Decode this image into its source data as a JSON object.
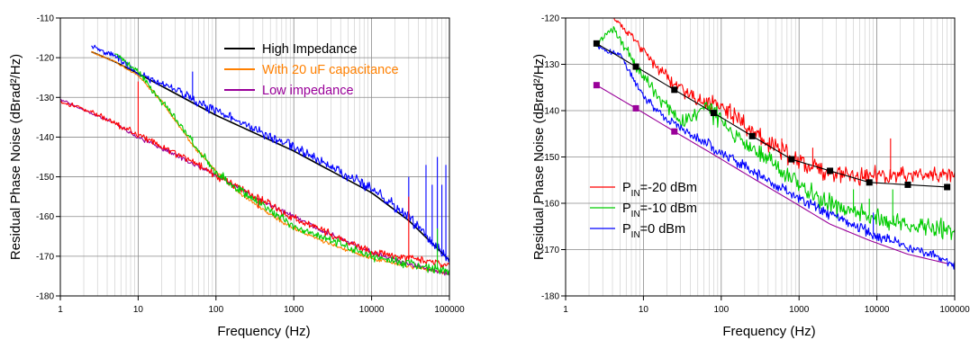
{
  "chart_data": [
    {
      "type": "line",
      "xlabel": "Frequency (Hz)",
      "ylabel": "Residual Phase Noise (dBrad²/Hz)",
      "x_scale": "log",
      "xlim": [
        1,
        100000
      ],
      "ylim": [
        -180,
        -110
      ],
      "xticks": [
        1,
        10,
        100,
        1000,
        10000,
        100000
      ],
      "xtick_labels": [
        "1",
        "10",
        "100",
        "1000",
        "10000",
        "100000"
      ],
      "yticks": [
        -180,
        -170,
        -160,
        -150,
        -140,
        -130,
        -120,
        -110
      ],
      "ytick_labels": [
        "-180",
        "-170",
        "-160",
        "-150",
        "-140",
        "-130",
        "-120",
        "-110"
      ],
      "grid": true,
      "legend_position": "top-right",
      "legend": [
        {
          "label": "High Impedance",
          "color": "#000000",
          "text_color": "#000000"
        },
        {
          "label": "With 20 uF capacitance",
          "color": "#ff8000",
          "text_color": "#ff8000"
        },
        {
          "label": "Low impedance",
          "color": "#990099",
          "text_color": "#990099"
        }
      ],
      "series": [
        {
          "name": "High Impedance",
          "color": "#000000",
          "x": [
            2.5,
            5,
            10,
            30,
            100,
            1000,
            10000,
            30000,
            100000
          ],
          "y": [
            -118.5,
            -121,
            -124,
            -129,
            -134.5,
            -143.5,
            -154,
            -161,
            -171
          ]
        },
        {
          "color": "#0000ff",
          "x": [
            2.5,
            5,
            10,
            30,
            100,
            1000,
            10000,
            30000,
            100000
          ],
          "y": [
            -117,
            -119.5,
            -124,
            -128,
            -133.5,
            -142.5,
            -153,
            -160,
            -171
          ]
        },
        {
          "name": "With 20 uF capacitance",
          "color": "#ff8000",
          "x": [
            2.5,
            5,
            10,
            20,
            50,
            100,
            200,
            500,
            1000,
            3000,
            10000,
            30000,
            100000
          ],
          "y": [
            -118.5,
            -121,
            -124.5,
            -131,
            -142,
            -148.5,
            -154,
            -159.5,
            -163,
            -167,
            -170.5,
            -172.5,
            -174.5
          ]
        },
        {
          "name": "Low impedance",
          "color": "#990099",
          "x": [
            1,
            2.5,
            5,
            10,
            30,
            100,
            300,
            1000,
            3000,
            10000,
            30000,
            100000
          ],
          "y": [
            -130.5,
            -134,
            -136.5,
            -140,
            -144.5,
            -149.5,
            -155,
            -160,
            -164.5,
            -169,
            -172,
            -174.5
          ]
        },
        {
          "color": "#ff0000",
          "x": [
            1,
            2.5,
            5,
            10,
            30,
            100,
            1000,
            10000,
            100000
          ],
          "y": [
            -131,
            -133.5,
            -136.5,
            -139.5,
            -144,
            -149.5,
            -160.5,
            -169,
            -172
          ]
        },
        {
          "color": "#00cc00",
          "x": [
            5,
            10,
            20,
            50,
            100,
            1000,
            10000,
            100000
          ],
          "y": [
            -119,
            -123.5,
            -131,
            -141,
            -149,
            -162.5,
            -170,
            -174
          ]
        }
      ]
    },
    {
      "type": "line",
      "xlabel": "Frequency (Hz)",
      "ylabel": "Residual Phase Noise (dBrad²/Hz)",
      "x_scale": "log",
      "xlim": [
        1,
        100000
      ],
      "ylim": [
        -180,
        -120
      ],
      "xticks": [
        1,
        10,
        100,
        1000,
        10000,
        100000
      ],
      "xtick_labels": [
        "1",
        "10",
        "100",
        "1000",
        "10000",
        "100000"
      ],
      "yticks": [
        -180,
        -170,
        -160,
        -150,
        -140,
        -130,
        -120
      ],
      "ytick_labels": [
        "-180",
        "-170",
        "-160",
        "-150",
        "-140",
        "-130",
        "-120"
      ],
      "grid": true,
      "legend_position": "bottom-left",
      "legend": [
        {
          "label_parts": [
            "P",
            "IN",
            "=-20 dBm"
          ],
          "color": "#ff0000"
        },
        {
          "label_parts": [
            "P",
            "IN",
            "=-10 dBm"
          ],
          "color": "#00cc00"
        },
        {
          "label_parts": [
            "P",
            "IN",
            "=0 dBm"
          ],
          "color": "#0000ff"
        }
      ],
      "series": [
        {
          "name": "P_IN=-20 dBm",
          "color": "#ff0000",
          "x": [
            3,
            5,
            10,
            20,
            50,
            100,
            200,
            500,
            1000,
            2000,
            5000,
            10000,
            30000,
            100000
          ],
          "y": [
            -118,
            -121,
            -127,
            -133,
            -138,
            -139,
            -143,
            -148,
            -151,
            -153,
            -154,
            -154,
            -154,
            -154
          ]
        },
        {
          "name": "P_IN=-10 dBm",
          "color": "#00cc00",
          "x": [
            2.5,
            4,
            8,
            15,
            30,
            60,
            100,
            200,
            500,
            1000,
            3000,
            10000,
            30000,
            100000
          ],
          "y": [
            -126,
            -122,
            -130,
            -137,
            -143,
            -139,
            -142,
            -147,
            -152,
            -156,
            -161,
            -163,
            -165,
            -166
          ]
        },
        {
          "name": "P_IN=0 dBm",
          "color": "#0000ff",
          "x": [
            2.5,
            5,
            10,
            20,
            50,
            100,
            200,
            500,
            1000,
            3000,
            10000,
            30000,
            100000
          ],
          "y": [
            -126,
            -128,
            -137,
            -142,
            -146,
            -149,
            -152,
            -156,
            -159,
            -163,
            -167,
            -170,
            -173
          ]
        },
        {
          "color": "#000000",
          "x": [
            2.5,
            8,
            25,
            80,
            250,
            800,
            2500,
            8000,
            25000,
            80000
          ],
          "y": [
            -125.5,
            -130.5,
            -135.5,
            -140.5,
            -145.5,
            -150.5,
            -153,
            -155.5,
            -156,
            -156.5
          ]
        },
        {
          "color": "#990099",
          "x": [
            2.5,
            8,
            25,
            80,
            250,
            800,
            2500,
            8000,
            25000,
            80000
          ],
          "y": [
            -134.5,
            -139.5,
            -144.5,
            -149.5,
            -154.5,
            -159.5,
            -164.5,
            -168,
            -171,
            -173
          ]
        }
      ],
      "markers": [
        {
          "color": "#000000",
          "x": [
            2.5,
            8,
            25,
            80,
            250,
            800,
            2500,
            8000,
            25000,
            80000
          ],
          "y": [
            -125.5,
            -130.5,
            -135.5,
            -140.5,
            -145.5,
            -150.5,
            -153,
            -155.5,
            -156,
            -156.5
          ]
        },
        {
          "color": "#990099",
          "x": [
            2.5,
            8,
            25
          ],
          "y": [
            -134.5,
            -139.5,
            -144.5
          ]
        }
      ]
    }
  ]
}
